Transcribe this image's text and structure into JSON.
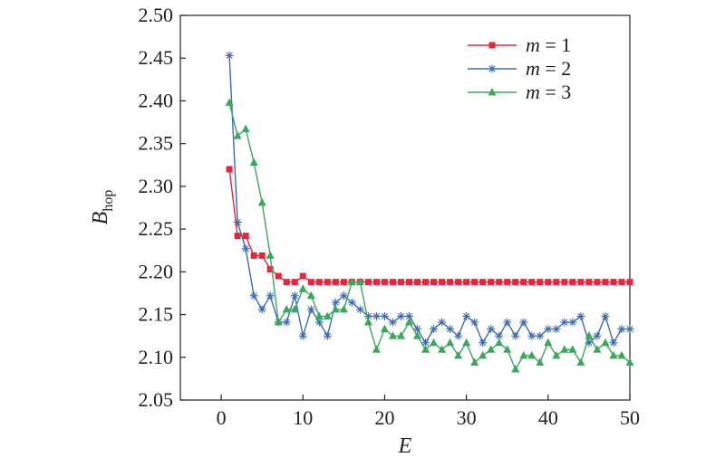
{
  "chart_data": {
    "type": "line",
    "title": "",
    "xlabel": "E",
    "ylabel": {
      "main": "B",
      "subscript": "hop"
    },
    "xlim": [
      -5,
      50
    ],
    "ylim": [
      2.05,
      2.5
    ],
    "x_ticks": [
      0,
      10,
      20,
      30,
      40,
      50
    ],
    "x_tick_labels": [
      "0",
      "10",
      "20",
      "30",
      "40",
      "50"
    ],
    "y_ticks": [
      2.05,
      2.1,
      2.15,
      2.2,
      2.25,
      2.3,
      2.35,
      2.4,
      2.45,
      2.5
    ],
    "y_tick_labels": [
      "2.05",
      "2.10",
      "2.15",
      "2.20",
      "2.25",
      "2.30",
      "2.35",
      "2.40",
      "2.45",
      "2.50"
    ],
    "grid": false,
    "legend_position": "top-right",
    "x": [
      1,
      2,
      3,
      4,
      5,
      6,
      7,
      8,
      9,
      10,
      11,
      12,
      13,
      14,
      15,
      16,
      17,
      18,
      19,
      20,
      21,
      22,
      23,
      24,
      25,
      26,
      27,
      28,
      29,
      30,
      31,
      32,
      33,
      34,
      35,
      36,
      37,
      38,
      39,
      40,
      41,
      42,
      43,
      44,
      45,
      46,
      47,
      48,
      49,
      50
    ],
    "series": [
      {
        "name": "m = 1",
        "legend_var": "m",
        "legend_rest": " = 1",
        "color": "#e8243c",
        "marker": "square",
        "values": [
          2.32,
          2.242,
          2.242,
          2.219,
          2.219,
          2.203,
          2.195,
          2.188,
          2.188,
          2.195,
          2.188,
          2.188,
          2.188,
          2.188,
          2.188,
          2.188,
          2.188,
          2.188,
          2.188,
          2.188,
          2.188,
          2.188,
          2.188,
          2.188,
          2.188,
          2.188,
          2.188,
          2.188,
          2.188,
          2.188,
          2.188,
          2.188,
          2.188,
          2.188,
          2.188,
          2.188,
          2.188,
          2.188,
          2.188,
          2.188,
          2.188,
          2.188,
          2.188,
          2.188,
          2.188,
          2.188,
          2.188,
          2.188,
          2.188,
          2.188
        ]
      },
      {
        "name": "m = 2",
        "legend_var": "m",
        "legend_rest": " = 2",
        "color": "#3a6bb8",
        "marker": "asterisk",
        "values": [
          2.453,
          2.258,
          2.227,
          2.172,
          2.156,
          2.172,
          2.141,
          2.141,
          2.172,
          2.125,
          2.156,
          2.141,
          2.125,
          2.164,
          2.172,
          2.164,
          2.156,
          2.148,
          2.148,
          2.148,
          2.141,
          2.148,
          2.148,
          2.133,
          2.117,
          2.133,
          2.141,
          2.133,
          2.125,
          2.148,
          2.141,
          2.117,
          2.133,
          2.125,
          2.141,
          2.125,
          2.141,
          2.125,
          2.125,
          2.133,
          2.133,
          2.141,
          2.141,
          2.148,
          2.117,
          2.125,
          2.148,
          2.117,
          2.133,
          2.133
        ]
      },
      {
        "name": "m = 3",
        "legend_var": "m",
        "legend_rest": " = 3",
        "color": "#3aa85a",
        "marker": "triangle",
        "values": [
          2.398,
          2.359,
          2.367,
          2.328,
          2.281,
          2.219,
          2.141,
          2.156,
          2.156,
          2.18,
          2.172,
          2.148,
          2.148,
          2.156,
          2.156,
          2.188,
          2.188,
          2.141,
          2.109,
          2.133,
          2.125,
          2.125,
          2.141,
          2.125,
          2.109,
          2.117,
          2.109,
          2.117,
          2.102,
          2.117,
          2.094,
          2.102,
          2.109,
          2.117,
          2.109,
          2.086,
          2.102,
          2.102,
          2.094,
          2.117,
          2.102,
          2.109,
          2.109,
          2.094,
          2.125,
          2.109,
          2.117,
          2.102,
          2.102,
          2.094
        ]
      }
    ]
  }
}
